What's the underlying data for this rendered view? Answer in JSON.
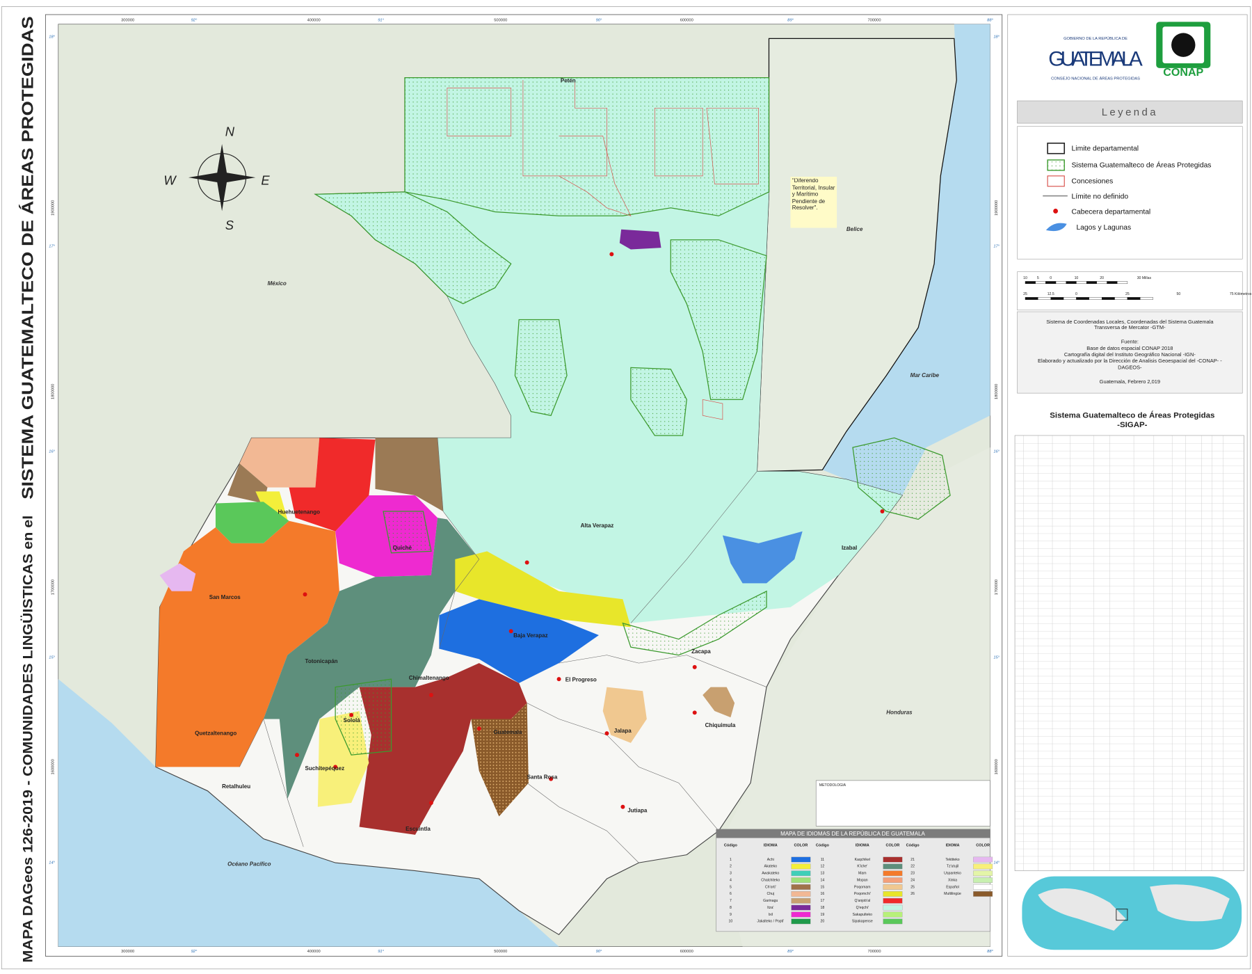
{
  "title": [
    "MAPA DAGeos 126-2019 - COMUNIDADES LINGÜISTICAS en el",
    "SISTEMA GUATEMALTECO DE ÁREAS PROTEGIDAS"
  ],
  "grid_labels": {
    "eastings": [
      "300000",
      "400000",
      "500000",
      "600000",
      "700000"
    ],
    "degrees": [
      "92°",
      "91°",
      "90°",
      "89°",
      "88°"
    ],
    "latitudes": [
      "18°",
      "17°",
      "16°",
      "15°",
      "14°"
    ],
    "northings": [
      "1900000",
      "1800000",
      "1700000",
      "1600000"
    ]
  },
  "compass": [
    "N",
    "S",
    "E",
    "W"
  ],
  "countries": [
    "México",
    "Belice",
    "Honduras",
    "Océano Pacífico",
    "Mar Caribe"
  ],
  "departments": [
    "Petén",
    "Huehuetenango",
    "Quiché",
    "Alta Verapaz",
    "Izabal",
    "San Marcos",
    "Totonicapán",
    "Baja Verapaz",
    "Zacapa",
    "El Progreso",
    "Chimaltenango",
    "Sololá",
    "Guatemala",
    "Jalapa",
    "Chiquimula",
    "Quetzaltenango",
    "Suchitepéquez",
    "Retalhuleu",
    "Santa Rosa",
    "Escuintla",
    "Jutiapa"
  ],
  "annotation": "\"Diferendo Territorial, Insular y Marítimo Pendiente de Resolver\".",
  "logos": {
    "gov_top": "GOBIERNO DE LA REPÚBLICA DE",
    "gov_name": "GUATEMALA",
    "gov_sub": "CONSEJO NACIONAL DE ÁREAS PROTEGIDAS",
    "conap": "CONAP"
  },
  "legend": {
    "title": "Leyenda",
    "items": [
      "Limite departamental",
      "Sistema Guatemalteco de Áreas Protegidas",
      "Concesiones",
      "Límite no definido",
      "Cabecera departamental",
      "Lagos y Lagunas"
    ]
  },
  "scale": {
    "miles": [
      "10",
      "5",
      "0",
      "10",
      "20",
      "30 Millas"
    ],
    "km": [
      "25",
      "12.5",
      "0",
      "25",
      "50",
      "75 Kilómetros"
    ]
  },
  "info": [
    "Sistema de Coordenadas Locales, Coordenadas del Sistema Guatemala",
    "Transversa de Mercator -GTM-",
    "Fuente:",
    "Base de datos espacial CONAP 2018",
    "Cartografía digital del Instituto Geográfico Nacional -IGN-",
    "Elaborado y actualizado por la Dirección de Analisis Geoespacial del -CONAP- -",
    "DAGEOS-",
    "Guatemala, Febrero 2,019"
  ],
  "sigap": {
    "title": "Sistema Guatemalteco de Áreas Protegidas",
    "subtitle": "-SIGAP-"
  },
  "methodology": "METODOLOGIA",
  "languages": {
    "title": "MAPA DE IDIOMAS DE LA REPÚBLICA DE GUATEMALA",
    "headers": [
      "Código",
      "IDIOMA",
      "COLOR"
    ],
    "rows": [
      {
        "code": 1,
        "name": "Achi",
        "color": "#1e6fe0"
      },
      {
        "code": 2,
        "name": "Akateko",
        "color": "#f3ef3a"
      },
      {
        "code": 3,
        "name": "Awakateko",
        "color": "#3fcfb8"
      },
      {
        "code": 4,
        "name": "Chalchiteko",
        "color": "#9ee07a"
      },
      {
        "code": 5,
        "name": "Ch'orti'",
        "color": "#a0724a"
      },
      {
        "code": 6,
        "name": "Chuj",
        "color": "#f2b894"
      },
      {
        "code": 7,
        "name": "Garinagu",
        "color": "#c8a070"
      },
      {
        "code": 8,
        "name": "Itza'",
        "color": "#7a2a9a"
      },
      {
        "code": 9,
        "name": "Ixil",
        "color": "#ee2ad0"
      },
      {
        "code": 10,
        "name": "Jakalteko / Popti'",
        "color": "#1f9a4a"
      },
      {
        "code": 11,
        "name": "Kaqchikel",
        "color": "#a8302e"
      },
      {
        "code": 12,
        "name": "K'iche'",
        "color": "#5e8f7c"
      },
      {
        "code": 13,
        "name": "Mam",
        "color": "#f47a2a"
      },
      {
        "code": 14,
        "name": "Mopan",
        "color": "#f4a07a"
      },
      {
        "code": 15,
        "name": "Poqomam",
        "color": "#f0c890"
      },
      {
        "code": 16,
        "name": "Poqomchi'",
        "color": "#e8e62a"
      },
      {
        "code": 17,
        "name": "Q'anjob'al",
        "color": "#f02a2a"
      },
      {
        "code": 18,
        "name": "Q'eqchi'",
        "color": "#c2f5e4"
      },
      {
        "code": 19,
        "name": "Sakapulteko",
        "color": "#b8f07a"
      },
      {
        "code": 20,
        "name": "Sipakapense",
        "color": "#5ac85a"
      },
      {
        "code": 21,
        "name": "Tektiteko",
        "color": "#e6b8f0"
      },
      {
        "code": 22,
        "name": "Tz'utujil",
        "color": "#f8f07a"
      },
      {
        "code": 23,
        "name": "Uspanteko",
        "color": "#e4f5a8"
      },
      {
        "code": 24,
        "name": "Xinka",
        "color": "#c8f0b0"
      },
      {
        "code": 25,
        "name": "Español",
        "color": "#ffffff"
      },
      {
        "code": 26,
        "name": "Multilingüe",
        "color": "#8a5a2a"
      }
    ]
  }
}
